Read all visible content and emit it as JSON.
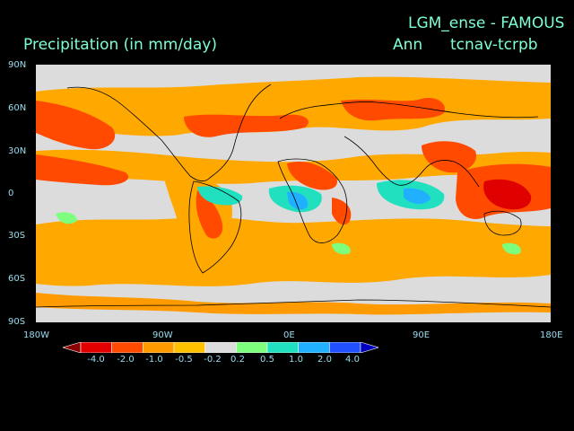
{
  "header": {
    "experiment": "LGM_ense - FAMOUS",
    "variable": "Precipitation (in mm/day)",
    "season": "Ann",
    "difference": "tcnav-tcrpb"
  },
  "axes": {
    "lat_labels": [
      "90N",
      "60N",
      "30N",
      "0",
      "30S",
      "60S",
      "90S"
    ],
    "lon_labels": [
      "180W",
      "90W",
      "0E",
      "90E",
      "180E"
    ]
  },
  "colorbar": {
    "labels": [
      "-4.0",
      "-2.0",
      "-1.0",
      "-0.5",
      "-0.2",
      "0.2",
      "0.5",
      "1.0",
      "2.0",
      "4.0"
    ],
    "colors": [
      "#8b0000",
      "#e10000",
      "#ff4a00",
      "#ff9a00",
      "#ffc000",
      "#dcdcdc",
      "#7dff7d",
      "#20e0c0",
      "#20b0ff",
      "#2050ff",
      "#0000c0"
    ]
  },
  "palette": {
    "background": "#000000",
    "title_text": "#7fffd4",
    "neutral": "#dcdcdc",
    "coast": "#000000"
  }
}
